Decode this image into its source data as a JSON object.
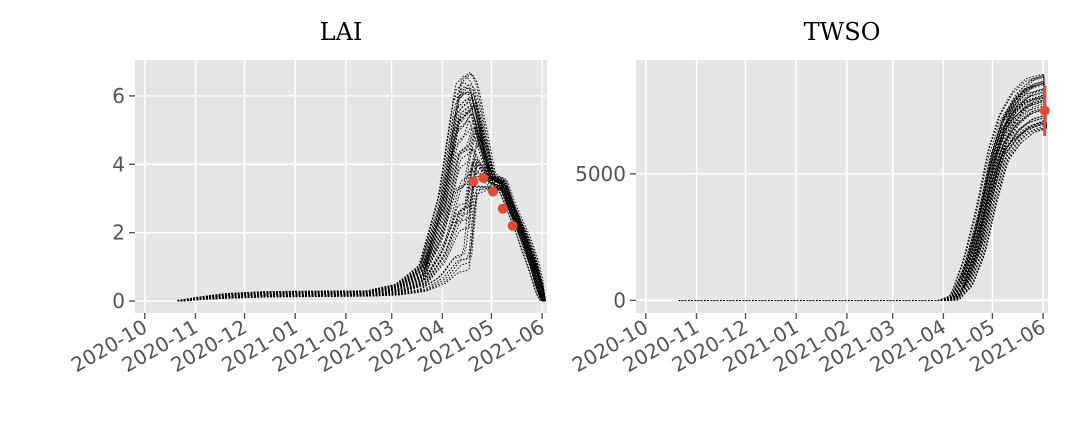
{
  "figure": {
    "panels": [
      {
        "title": "LAI"
      },
      {
        "title": "TWSO"
      }
    ]
  },
  "chart_data": [
    {
      "type": "line",
      "title": "LAI",
      "xlabel": "",
      "ylabel": "",
      "x_type": "date",
      "xlim": [
        "2020-09-25",
        "2021-06-04"
      ],
      "ylim": [
        -0.35,
        7.05
      ],
      "x_ticks": [
        "2020-10-01",
        "2020-11-01",
        "2020-12-01",
        "2021-01-01",
        "2021-02-01",
        "2021-03-01",
        "2021-04-01",
        "2021-05-01",
        "2021-06-01"
      ],
      "x_tick_labels": [
        "2020-10",
        "2020-11",
        "2020-12",
        "2021-01",
        "2021-02",
        "2021-03",
        "2021-04",
        "2021-05",
        "2021-06"
      ],
      "y_ticks": [
        0,
        2,
        4,
        6
      ],
      "y_tick_labels": [
        "0",
        "2",
        "4",
        "6"
      ],
      "grid": true,
      "ensemble": {
        "member_count": 50,
        "style": "black dotted lines",
        "dates": [
          "2020-10-21",
          "2020-11-05",
          "2020-11-20",
          "2020-12-15",
          "2021-01-15",
          "2021-02-15",
          "2021-03-05",
          "2021-03-20",
          "2021-04-01",
          "2021-04-10",
          "2021-04-16",
          "2021-04-20",
          "2021-05-01",
          "2021-05-08",
          "2021-05-13",
          "2021-05-18",
          "2021-05-22",
          "2021-05-27",
          "2021-05-30",
          "2021-06-02",
          "2021-06-03"
        ],
        "low": [
          0.0,
          0.05,
          0.08,
          0.12,
          0.13,
          0.14,
          0.18,
          0.28,
          0.5,
          0.85,
          0.9,
          3.1,
          3.3,
          3.2,
          2.6,
          2.0,
          1.4,
          0.75,
          0.25,
          0.0,
          0.0
        ],
        "high": [
          0.0,
          0.12,
          0.22,
          0.28,
          0.29,
          0.3,
          0.5,
          1.1,
          3.3,
          6.4,
          6.7,
          6.4,
          3.7,
          3.55,
          2.85,
          2.3,
          1.9,
          1.2,
          0.6,
          0.15,
          0.0
        ]
      },
      "observations": {
        "dates": [
          "2021-04-20",
          "2021-04-26",
          "2021-05-02",
          "2021-05-08",
          "2021-05-14"
        ],
        "values": [
          3.5,
          3.6,
          3.2,
          2.7,
          2.2
        ]
      }
    },
    {
      "type": "line",
      "title": "TWSO",
      "xlabel": "",
      "ylabel": "",
      "x_type": "date",
      "xlim": [
        "2020-09-25",
        "2021-06-04"
      ],
      "ylim": [
        -500,
        9500
      ],
      "x_ticks": [
        "2020-10-01",
        "2020-11-01",
        "2020-12-01",
        "2021-01-01",
        "2021-02-01",
        "2021-03-01",
        "2021-04-01",
        "2021-05-01",
        "2021-06-01"
      ],
      "x_tick_labels": [
        "2020-10",
        "2020-11",
        "2020-12",
        "2021-01",
        "2021-02",
        "2021-03",
        "2021-04",
        "2021-05",
        "2021-06"
      ],
      "y_ticks": [
        0,
        5000
      ],
      "y_tick_labels": [
        "0",
        "5000"
      ],
      "grid": true,
      "ensemble": {
        "member_count": 50,
        "style": "black dotted lines",
        "dates": [
          "2020-10-21",
          "2021-04-01",
          "2021-04-08",
          "2021-04-16",
          "2021-04-24",
          "2021-05-01",
          "2021-05-08",
          "2021-05-16",
          "2021-05-24",
          "2021-06-03"
        ],
        "low": [
          0,
          0,
          0,
          500,
          1800,
          3800,
          5500,
          6200,
          6600,
          6800
        ],
        "high": [
          0,
          0,
          200,
          1700,
          3800,
          6000,
          7400,
          8300,
          8800,
          9000
        ]
      },
      "observations": {
        "dates": [
          "2021-06-02"
        ],
        "values": [
          7500
        ],
        "errors": [
          1000
        ]
      }
    }
  ]
}
